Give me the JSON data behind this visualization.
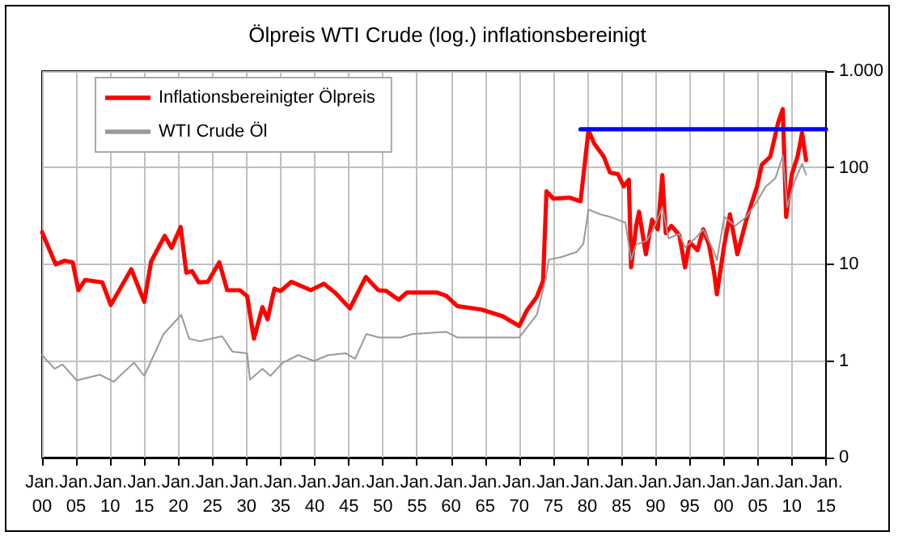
{
  "chart_data": {
    "type": "line",
    "title": "Ölpreis WTI Crude (log.) inflationsbereinigt",
    "log": "y",
    "grid": true,
    "legend": "top left",
    "marker": "none",
    "line_style": "solid",
    "xlim": [
      "1900-01",
      "2015-01"
    ],
    "xticks": [
      {
        "value": "1900-01",
        "label": "Jan. 00"
      },
      {
        "value": "1905-01",
        "label": "Jan. 05"
      },
      {
        "value": "1910-01",
        "label": "Jan. 10"
      },
      {
        "value": "1915-01",
        "label": "Jan. 15"
      },
      {
        "value": "1920-01",
        "label": "Jan. 20"
      },
      {
        "value": "1925-01",
        "label": "Jan. 25"
      },
      {
        "value": "1930-01",
        "label": "Jan. 30"
      },
      {
        "value": "1935-01",
        "label": "Jan. 35"
      },
      {
        "value": "1940-01",
        "label": "Jan. 40"
      },
      {
        "value": "1945-01",
        "label": "Jan. 45"
      },
      {
        "value": "1950-01",
        "label": "Jan. 50"
      },
      {
        "value": "1955-01",
        "label": "Jan. 55"
      },
      {
        "value": "1960-01",
        "label": "Jan. 60"
      },
      {
        "value": "1965-01",
        "label": "Jan. 65"
      },
      {
        "value": "1970-01",
        "label": "Jan. 70"
      },
      {
        "value": "1975-01",
        "label": "Jan. 75"
      },
      {
        "value": "1980-01",
        "label": "Jan. 80"
      },
      {
        "value": "1985-01",
        "label": "Jan. 85"
      },
      {
        "value": "1990-01",
        "label": "Jan. 90"
      },
      {
        "value": "1995-01",
        "label": "Jan. 95"
      },
      {
        "value": "2000-01",
        "label": "Jan. 00"
      },
      {
        "value": "2005-01",
        "label": "Jan. 05"
      },
      {
        "value": "2010-01",
        "label": "Jan. 10"
      },
      {
        "value": "2015-01",
        "label": "Jan. 15"
      }
    ],
    "ylim": [
      0.1,
      1000
    ],
    "yticks": [
      {
        "value": 0.1,
        "label": "0"
      },
      1,
      10,
      100,
      {
        "value": 1000,
        "label": "1.000"
      }
    ],
    "series": [
      {
        "name": "Inflationsbereinigter Ölpreis",
        "color": "#ff0000",
        "x": [
          "1900-01",
          "1902-01",
          "1903-05",
          "1904-07",
          "1905-05",
          "1906-05",
          "1908-11",
          "1910-02",
          "1913-02",
          "1915-01",
          "1916-01",
          "1918-01",
          "1919-01",
          "1920-05",
          "1921-03",
          "1922-01",
          "1923-01",
          "1924-05",
          "1926-01",
          "1927-03",
          "1929-01",
          "1930-02",
          "1931-02",
          "1932-05",
          "1933-02",
          "1934-02",
          "1935-01",
          "1936-08",
          "1939-06",
          "1941-05",
          "1943-01",
          "1945-03",
          "1947-07",
          "1949-05",
          "1950-07",
          "1952-05",
          "1953-07",
          "1956-08",
          "1958-01",
          "1959-05",
          "1960-12",
          "1964-07",
          "1967-08",
          "1970-01",
          "1971-02",
          "1972-08",
          "1973-07",
          "1974-01",
          "1975-01",
          "1977-06",
          "1979-01",
          "1980-03",
          "1981-01",
          "1982-06",
          "1983-05",
          "1984-07",
          "1985-05",
          "1986-02",
          "1986-06",
          "1987-03",
          "1987-08",
          "1988-08",
          "1989-07",
          "1990-05",
          "1991-01",
          "1991-07",
          "1992-05",
          "1993-07",
          "1994-05",
          "1995-01",
          "1996-03",
          "1997-01",
          "1997-11",
          "1998-08",
          "1999-01",
          "2000-02",
          "2000-12",
          "2002-01",
          "2003-05",
          "2004-12",
          "2005-08",
          "2006-11",
          "2008-01",
          "2008-09",
          "2009-03",
          "2010-01",
          "2010-11",
          "2011-07",
          "2012-02"
        ],
        "values": [
          21.5,
          10,
          10.9,
          10.5,
          5.4,
          6.9,
          6.5,
          3.8,
          8.9,
          4.1,
          10.7,
          19.7,
          14.8,
          24.4,
          8.2,
          8.5,
          6.5,
          6.6,
          10.5,
          5.4,
          5.4,
          4.7,
          1.7,
          3.6,
          2.7,
          5.6,
          5.3,
          6.6,
          5.4,
          6.3,
          5.1,
          3.5,
          7.4,
          5.4,
          5.3,
          4.3,
          5.1,
          5.1,
          5.1,
          4.7,
          3.7,
          3.4,
          2.9,
          2.3,
          3.3,
          4.6,
          6.7,
          57,
          48,
          49,
          45,
          244,
          178,
          130,
          89,
          86,
          64,
          75,
          9.3,
          25,
          35,
          12.7,
          29,
          23,
          84,
          21,
          25,
          20,
          9.3,
          17,
          14,
          23,
          16,
          8.3,
          4.9,
          16,
          33,
          12.7,
          29,
          65,
          107,
          130,
          295,
          405,
          31,
          86,
          130,
          229,
          120
        ]
      },
      {
        "name": "WTI Crude Öl",
        "color": "#999999",
        "x": [
          "1900-01",
          "1901-11",
          "1903-01",
          "1905-02",
          "1908-07",
          "1910-07",
          "1913-07",
          "1915-01",
          "1917-11",
          "1920-06",
          "1921-08",
          "1923-03",
          "1926-06",
          "1927-12",
          "1930-02",
          "1930-07",
          "1932-05",
          "1933-07",
          "1935-05",
          "1937-08",
          "1939-12",
          "1942-01",
          "1944-08",
          "1945-12",
          "1947-08",
          "1949-07",
          "1952-09",
          "1954-05",
          "1959-05",
          "1960-12",
          "1970-01",
          "1971-02",
          "1972-08",
          "1973-12",
          "1974-05",
          "1976-03",
          "1978-06",
          "1979-06",
          "1980-03",
          "1981-11",
          "1983-05",
          "1985-08",
          "1986-06",
          "1987-03",
          "1988-09",
          "1989-07",
          "1991-01",
          "1991-12",
          "1993-07",
          "1994-05",
          "1995-11",
          "1997-01",
          "1998-08",
          "1999-01",
          "2000-02",
          "2001-09",
          "2003-05",
          "2004-12",
          "2006-02",
          "2007-08",
          "2008-09",
          "2009-05",
          "2010-05",
          "2011-07",
          "2012-02"
        ],
        "values": [
          1.15,
          0.83,
          0.92,
          0.63,
          0.72,
          0.61,
          0.96,
          0.7,
          1.9,
          3.0,
          1.7,
          1.6,
          1.8,
          1.25,
          1.2,
          0.64,
          0.83,
          0.7,
          0.96,
          1.15,
          1.0,
          1.15,
          1.2,
          1.05,
          1.9,
          1.75,
          1.75,
          1.9,
          2.0,
          1.75,
          1.75,
          2.2,
          3.0,
          7.2,
          11.2,
          11.9,
          13.4,
          16.3,
          37,
          33,
          31,
          27,
          11.2,
          16,
          17.6,
          21.6,
          39,
          18.6,
          20.6,
          15,
          18.6,
          23,
          13.5,
          11,
          31,
          25,
          31,
          45,
          63,
          78,
          133,
          39,
          70,
          110,
          85
        ]
      },
      {
        "color": "#0000ff",
        "x": [
          "1979-01",
          "2015-01"
        ],
        "values": [
          250,
          250
        ]
      }
    ]
  }
}
